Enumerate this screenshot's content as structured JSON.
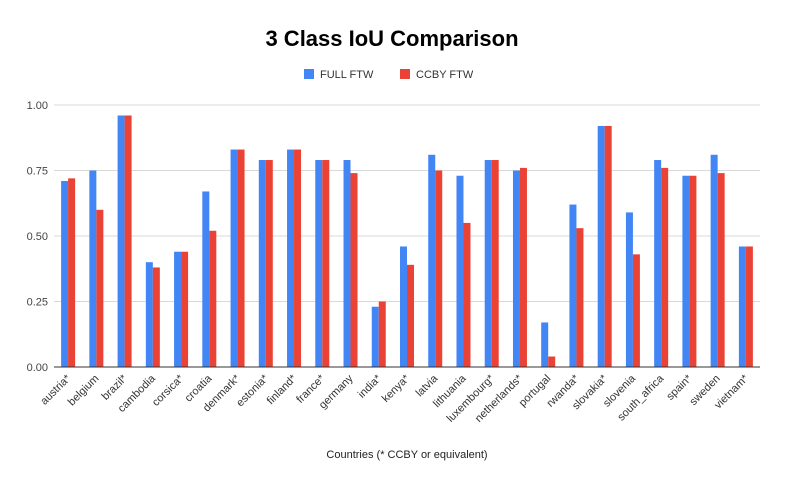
{
  "chart_data": {
    "type": "bar",
    "title": "3 Class IoU Comparison",
    "xlabel": "Countries (* CCBY or equivalent)",
    "ylabel": "",
    "ylim": [
      0,
      1
    ],
    "yticks": [
      "0.00",
      "0.25",
      "0.50",
      "0.75",
      "1.00"
    ],
    "ytick_values": [
      0,
      0.25,
      0.5,
      0.75,
      1.0
    ],
    "grid": true,
    "legend_position": "top",
    "categories": [
      "austria*",
      "belgium",
      "brazil*",
      "cambodia",
      "corsica*",
      "croatia",
      "denmark*",
      "estonia*",
      "finland*",
      "france*",
      "germany",
      "india*",
      "kenya*",
      "latvia",
      "lithuania",
      "luxembourg*",
      "netherlands*",
      "portugal",
      "rwanda*",
      "slovakia*",
      "slovenia",
      "south_africa",
      "spain*",
      "sweden",
      "vietnam*"
    ],
    "series": [
      {
        "name": "FULL FTW",
        "color": "#4285f4",
        "values": [
          0.71,
          0.75,
          0.96,
          0.4,
          0.44,
          0.67,
          0.83,
          0.79,
          0.83,
          0.79,
          0.79,
          0.23,
          0.46,
          0.81,
          0.73,
          0.79,
          0.75,
          0.17,
          0.62,
          0.92,
          0.59,
          0.79,
          0.73,
          0.81,
          0.46
        ]
      },
      {
        "name": "CCBY FTW",
        "color": "#ea4335",
        "values": [
          0.72,
          0.6,
          0.96,
          0.38,
          0.44,
          0.52,
          0.83,
          0.79,
          0.83,
          0.79,
          0.74,
          0.25,
          0.39,
          0.75,
          0.55,
          0.79,
          0.76,
          0.04,
          0.53,
          0.92,
          0.43,
          0.76,
          0.73,
          0.74,
          0.46
        ]
      }
    ]
  }
}
